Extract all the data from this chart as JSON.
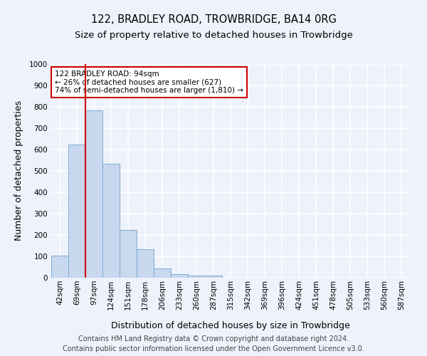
{
  "title": "122, BRADLEY ROAD, TROWBRIDGE, BA14 0RG",
  "subtitle": "Size of property relative to detached houses in Trowbridge",
  "xlabel": "Distribution of detached houses by size in Trowbridge",
  "ylabel": "Number of detached properties",
  "bin_labels": [
    "42sqm",
    "69sqm",
    "97sqm",
    "124sqm",
    "151sqm",
    "178sqm",
    "206sqm",
    "233sqm",
    "260sqm",
    "287sqm",
    "315sqm",
    "342sqm",
    "369sqm",
    "396sqm",
    "424sqm",
    "451sqm",
    "478sqm",
    "505sqm",
    "533sqm",
    "560sqm",
    "587sqm"
  ],
  "bar_values": [
    103,
    623,
    783,
    535,
    222,
    133,
    43,
    18,
    10,
    10,
    0,
    0,
    0,
    0,
    0,
    0,
    0,
    0,
    0,
    0,
    0
  ],
  "bar_color": "#c8d8ee",
  "bar_edgecolor": "#7aafd4",
  "red_line_x": 1.5,
  "annotation_text": "122 BRADLEY ROAD: 94sqm\n← 26% of detached houses are smaller (627)\n74% of semi-detached houses are larger (1,810) →",
  "annotation_box_color": "#ffffff",
  "annotation_box_edgecolor": "#cc0000",
  "ylim": [
    0,
    1000
  ],
  "yticks": [
    0,
    100,
    200,
    300,
    400,
    500,
    600,
    700,
    800,
    900,
    1000
  ],
  "footer_line1": "Contains HM Land Registry data © Crown copyright and database right 2024.",
  "footer_line2": "Contains public sector information licensed under the Open Government Licence v3.0.",
  "background_color": "#eef2fb",
  "plot_bg_color": "#eef2fb",
  "grid_color": "#ffffff",
  "title_fontsize": 10.5,
  "subtitle_fontsize": 9.5,
  "xlabel_fontsize": 9,
  "ylabel_fontsize": 9,
  "tick_fontsize": 7.5,
  "annot_fontsize": 7.5,
  "footer_fontsize": 7
}
